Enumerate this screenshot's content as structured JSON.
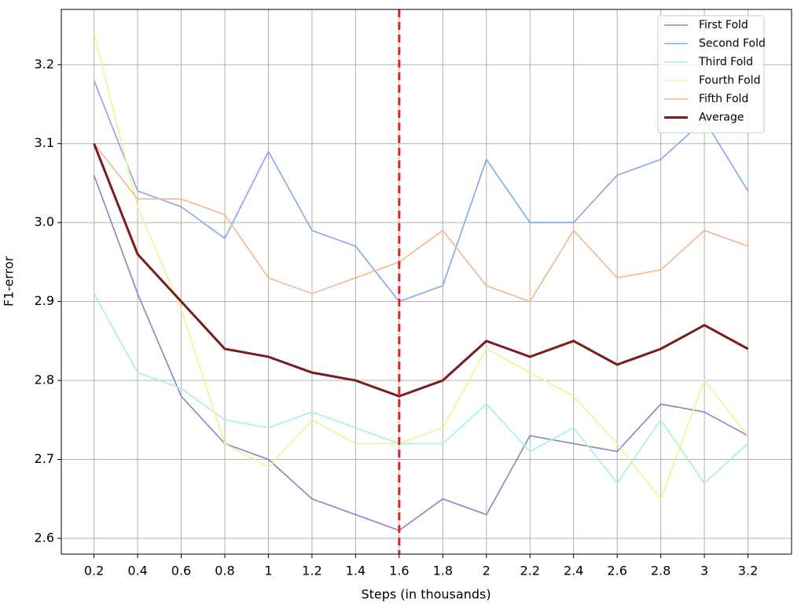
{
  "chart_data": {
    "type": "line",
    "xlabel": "Steps (in thousands)",
    "ylabel": "F1-error",
    "x": [
      0.2,
      0.4,
      0.6,
      0.8,
      1,
      1.2,
      1.4,
      1.6,
      1.8,
      2,
      2.2,
      2.4,
      2.6,
      2.8,
      3,
      3.2
    ],
    "series": [
      {
        "name": "First Fold",
        "color": "#8585c4",
        "values": [
          3.06,
          2.91,
          2.78,
          2.72,
          2.7,
          2.65,
          2.63,
          2.61,
          2.65,
          2.63,
          2.73,
          2.72,
          2.71,
          2.77,
          2.76,
          2.73
        ]
      },
      {
        "name": "Second Fold",
        "color": "#84a6ee",
        "values": [
          3.18,
          3.04,
          3.02,
          2.98,
          3.09,
          2.99,
          2.97,
          2.9,
          2.92,
          3.08,
          3.0,
          3.0,
          3.06,
          3.08,
          3.13,
          3.04
        ]
      },
      {
        "name": "Third Fold",
        "color": "#a3f3dc",
        "values": [
          2.91,
          2.81,
          2.79,
          2.75,
          2.74,
          2.76,
          2.74,
          2.72,
          2.72,
          2.77,
          2.71,
          2.74,
          2.67,
          2.75,
          2.67,
          2.72
        ]
      },
      {
        "name": "Fourth Fold",
        "color": "#edf590",
        "values": [
          3.24,
          3.02,
          2.89,
          2.72,
          2.69,
          2.75,
          2.72,
          2.72,
          2.74,
          2.84,
          2.81,
          2.78,
          2.72,
          2.65,
          2.8,
          2.73
        ]
      },
      {
        "name": "Fifth Fold",
        "color": "#f4b690",
        "values": [
          3.1,
          3.03,
          3.03,
          3.01,
          2.93,
          2.91,
          2.93,
          2.95,
          2.99,
          2.92,
          2.9,
          2.99,
          2.93,
          2.94,
          2.99,
          2.97
        ]
      },
      {
        "name": "Average",
        "color": "#7c1c1c",
        "width": 3,
        "values": [
          3.1,
          2.96,
          2.9,
          2.84,
          2.83,
          2.81,
          2.8,
          2.78,
          2.8,
          2.85,
          2.83,
          2.85,
          2.82,
          2.84,
          2.87,
          2.84
        ]
      }
    ],
    "xlim": [
      0.05,
      3.4
    ],
    "ylim": [
      2.58,
      3.27
    ],
    "xticks": [
      0.2,
      0.4,
      0.6,
      0.8,
      1,
      1.2,
      1.4,
      1.6,
      1.8,
      2,
      2.2,
      2.4,
      2.6,
      2.8,
      3,
      3.2
    ],
    "yticks": [
      2.6,
      2.7,
      2.8,
      2.9,
      {
        "value": 3,
        "label": "3.0"
      },
      3.1,
      3.2
    ],
    "grid": true,
    "legend": "upper right",
    "vline": {
      "x": 1.6,
      "color": "#d62728"
    }
  }
}
